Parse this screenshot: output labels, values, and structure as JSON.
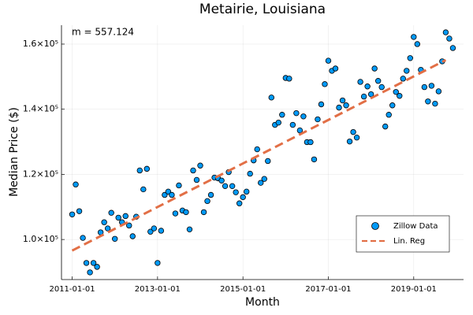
{
  "chart_data": {
    "type": "scatter",
    "title": "Metairie, Louisiana",
    "x_label": "Month",
    "y_label": "Median Price ($)",
    "annotation": "m = 557.124",
    "grid": true,
    "legend_position": "bottom-right",
    "xlim": [
      "2010-10-01",
      "2020-03-01"
    ],
    "xticks": [
      "2011-01-01",
      "2013-01-01",
      "2015-01-01",
      "2017-01-01",
      "2019-01-01"
    ],
    "ylim": [
      87700,
      165800
    ],
    "yticks": [
      {
        "value": 100000,
        "label": "1.0×10⁵"
      },
      {
        "value": 120000,
        "label": "1.2×10⁵"
      },
      {
        "value": 140000,
        "label": "1.4×10⁵"
      },
      {
        "value": 160000,
        "label": "1.6×10⁵"
      }
    ],
    "series": [
      {
        "name": "Zillow Data",
        "type": "scatter",
        "color": "#009af9",
        "x": [
          "2011-01-01",
          "2011-02-01",
          "2011-03-01",
          "2011-04-01",
          "2011-05-01",
          "2011-06-01",
          "2011-07-01",
          "2011-08-01",
          "2011-09-01",
          "2011-10-01",
          "2011-11-01",
          "2011-12-01",
          "2012-01-01",
          "2012-02-01",
          "2012-03-01",
          "2012-04-01",
          "2012-05-01",
          "2012-06-01",
          "2012-07-01",
          "2012-08-01",
          "2012-09-01",
          "2012-10-01",
          "2012-11-01",
          "2012-12-01",
          "2013-01-01",
          "2013-02-01",
          "2013-03-01",
          "2013-04-01",
          "2013-05-01",
          "2013-06-01",
          "2013-07-01",
          "2013-08-01",
          "2013-09-01",
          "2013-10-01",
          "2013-11-01",
          "2013-12-01",
          "2014-01-01",
          "2014-02-01",
          "2014-03-01",
          "2014-04-01",
          "2014-05-01",
          "2014-06-01",
          "2014-07-01",
          "2014-08-01",
          "2014-09-01",
          "2014-10-01",
          "2014-11-01",
          "2014-12-01",
          "2015-01-01",
          "2015-02-01",
          "2015-03-01",
          "2015-04-01",
          "2015-05-01",
          "2015-06-01",
          "2015-07-01",
          "2015-08-01",
          "2015-09-01",
          "2015-10-01",
          "2015-11-01",
          "2015-12-01",
          "2016-01-01",
          "2016-02-01",
          "2016-03-01",
          "2016-04-01",
          "2016-05-01",
          "2016-06-01",
          "2016-07-01",
          "2016-08-01",
          "2016-09-01",
          "2016-10-01",
          "2016-11-01",
          "2016-12-01",
          "2017-01-01",
          "2017-02-01",
          "2017-03-01",
          "2017-04-01",
          "2017-05-01",
          "2017-06-01",
          "2017-07-01",
          "2017-08-01",
          "2017-09-01",
          "2017-10-01",
          "2017-11-01",
          "2017-12-01",
          "2018-01-01",
          "2018-02-01",
          "2018-03-01",
          "2018-04-01",
          "2018-05-01",
          "2018-06-01",
          "2018-07-01",
          "2018-08-01",
          "2018-09-01",
          "2018-10-01",
          "2018-11-01",
          "2018-12-01",
          "2019-01-01",
          "2019-02-01",
          "2019-03-01",
          "2019-04-01",
          "2019-05-01",
          "2019-06-01",
          "2019-07-01",
          "2019-08-01",
          "2019-09-01",
          "2019-10-01",
          "2019-11-01",
          "2019-12-01"
        ],
        "values": [
          107700,
          116900,
          108700,
          100500,
          92800,
          89900,
          92800,
          91600,
          102200,
          105300,
          103400,
          108200,
          100200,
          106700,
          105300,
          107200,
          104300,
          101000,
          107000,
          121200,
          115400,
          121700,
          102400,
          103400,
          92800,
          102700,
          113700,
          114700,
          113700,
          108000,
          116600,
          108900,
          108400,
          103100,
          121200,
          118300,
          122700,
          108400,
          111800,
          113700,
          119000,
          118800,
          118100,
          116400,
          120700,
          116400,
          114500,
          111100,
          113000,
          114700,
          120200,
          124300,
          127700,
          117400,
          118600,
          124100,
          143600,
          135200,
          135900,
          138300,
          149600,
          149400,
          135200,
          138800,
          133500,
          137800,
          129900,
          129900,
          124600,
          136900,
          141500,
          147700,
          154900,
          151800,
          152500,
          140500,
          142700,
          141200,
          130100,
          133000,
          131300,
          148400,
          143900,
          147000,
          144600,
          152500,
          148700,
          146800,
          134700,
          138300,
          141200,
          145300,
          144100,
          149400,
          151800,
          155700,
          162200,
          160000,
          152100,
          146800,
          142400,
          147200,
          141700,
          145500,
          154700,
          163600,
          161700,
          158800
        ]
      },
      {
        "name": "Lin. Reg",
        "type": "line",
        "color": "#e26f46",
        "x": [
          "2011-01-01",
          "2019-10-01"
        ],
        "values": [
          96600,
          155100
        ]
      }
    ]
  }
}
